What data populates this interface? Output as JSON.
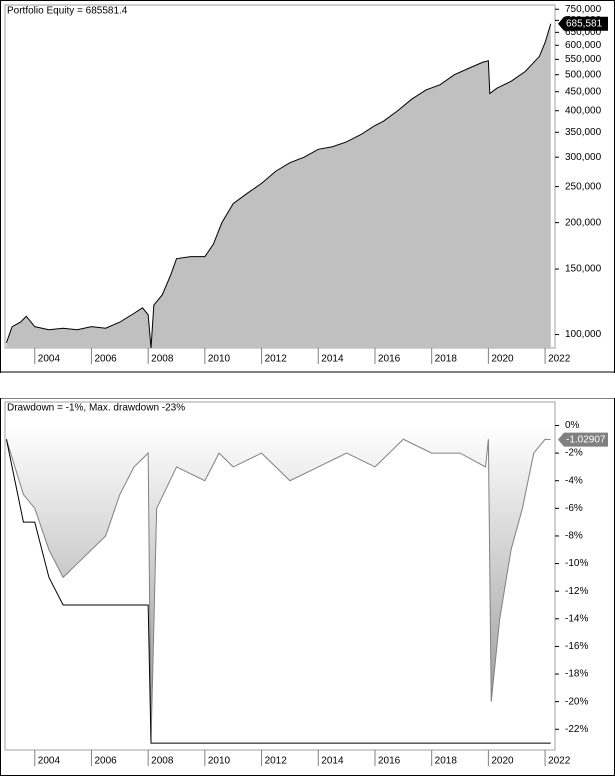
{
  "chart_data": [
    {
      "type": "area",
      "title": "Portfolio Equity = 685581.4",
      "log_scale": true,
      "x": [
        2003.0,
        2003.2,
        2003.5,
        2003.7,
        2004.0,
        2004.5,
        2005.0,
        2005.5,
        2006.0,
        2006.5,
        2007.0,
        2007.5,
        2007.8,
        2008.0,
        2008.1,
        2008.2,
        2008.5,
        2008.8,
        2009.0,
        2009.5,
        2010.0,
        2010.3,
        2010.6,
        2011.0,
        2011.5,
        2012.0,
        2012.5,
        2013.0,
        2013.5,
        2014.0,
        2014.5,
        2015.0,
        2015.5,
        2016.0,
        2016.3,
        2016.8,
        2017.3,
        2017.8,
        2018.3,
        2018.8,
        2019.3,
        2019.8,
        2020.0,
        2020.05,
        2020.3,
        2020.8,
        2021.3,
        2021.8,
        2022.0,
        2022.2
      ],
      "series": [
        {
          "color": "#000000",
          "fill": "#c0c0c0",
          "values": [
            95000,
            105000,
            108000,
            112000,
            105000,
            103000,
            104000,
            103000,
            105000,
            104000,
            108000,
            114000,
            118000,
            113000,
            92000,
            120000,
            128000,
            145000,
            160000,
            162000,
            162000,
            175000,
            200000,
            225000,
            240000,
            255000,
            275000,
            290000,
            300000,
            315000,
            320000,
            330000,
            345000,
            365000,
            375000,
            400000,
            430000,
            455000,
            470000,
            500000,
            520000,
            540000,
            545000,
            445000,
            460000,
            480000,
            510000,
            560000,
            610000,
            685581
          ]
        }
      ],
      "xlim": [
        2002.95,
        2022.35
      ],
      "xticks": [
        2004,
        2006,
        2008,
        2010,
        2012,
        2014,
        2016,
        2018,
        2020,
        2022
      ],
      "ylim": [
        92000,
        770000
      ],
      "yticks": [
        {
          "value": 100000,
          "label": "100,000"
        },
        {
          "value": 150000,
          "label": "150,000"
        },
        {
          "value": 200000,
          "label": "200,000"
        },
        {
          "value": 250000,
          "label": "250,000"
        },
        {
          "value": 300000,
          "label": "300,000"
        },
        {
          "value": 350000,
          "label": "350,000"
        },
        {
          "value": 400000,
          "label": "400,000"
        },
        {
          "value": 450000,
          "label": "450,000"
        },
        {
          "value": 500000,
          "label": "500,000"
        },
        {
          "value": 550000,
          "label": "550,000"
        },
        {
          "value": 600000,
          "label": "600,000"
        },
        {
          "value": 650000,
          "label": "650,000"
        },
        {
          "value": 700000,
          "label": "700,000"
        },
        {
          "value": 750000,
          "label": "750,000"
        }
      ],
      "value_tag": {
        "value": 685581,
        "label": "685,581"
      },
      "tag_color": "#000000"
    },
    {
      "type": "area",
      "title": "Drawdown = -1%, Max. drawdown -23%",
      "x": [
        2003.0,
        2003.3,
        2003.6,
        2004.0,
        2004.5,
        2005.0,
        2005.5,
        2006.0,
        2006.5,
        2007.0,
        2007.5,
        2008.0,
        2008.1,
        2008.3,
        2009.0,
        2010.0,
        2010.5,
        2011.0,
        2012.0,
        2013.0,
        2014.0,
        2015.0,
        2016.0,
        2017.0,
        2018.0,
        2019.0,
        2019.9,
        2020.0,
        2020.1,
        2020.4,
        2020.8,
        2021.2,
        2021.6,
        2022.0,
        2022.2
      ],
      "series": [
        {
          "color": "#808080",
          "fill": "#909090",
          "values": [
            -1,
            -3,
            -5,
            -6,
            -9,
            -11,
            -10,
            -9,
            -8,
            -5,
            -3,
            -2,
            -23,
            -6,
            -3,
            -4,
            -2,
            -3,
            -2,
            -4,
            -3,
            -2,
            -3,
            -1,
            -2,
            -2,
            -3,
            -1,
            -20,
            -14,
            -9,
            -6,
            -2,
            -1,
            -1.02907
          ]
        },
        {
          "color": "#000000",
          "values": [
            -1,
            -4,
            -7,
            -7,
            -11,
            -13,
            -13,
            -13,
            -13,
            -13,
            -13,
            -13,
            -23,
            -23,
            -23,
            -23,
            -23,
            -23,
            -23,
            -23,
            -23,
            -23,
            -23,
            -23,
            -23,
            -23,
            -23,
            -23,
            -23,
            -23,
            -23,
            -23,
            -23,
            -23,
            -23
          ]
        }
      ],
      "xlim": [
        2002.95,
        2022.35
      ],
      "xticks": [
        2004,
        2006,
        2008,
        2010,
        2012,
        2014,
        2016,
        2018,
        2020,
        2022
      ],
      "ylim": [
        -23.5,
        1.7
      ],
      "yticks": [
        {
          "value": 0,
          "label": "0%"
        },
        {
          "value": -2,
          "label": "-2%"
        },
        {
          "value": -4,
          "label": "-4%"
        },
        {
          "value": -6,
          "label": "-6%"
        },
        {
          "value": -8,
          "label": "-8%"
        },
        {
          "value": -10,
          "label": "-10%"
        },
        {
          "value": -12,
          "label": "-12%"
        },
        {
          "value": -14,
          "label": "-14%"
        },
        {
          "value": -16,
          "label": "-16%"
        },
        {
          "value": -18,
          "label": "-18%"
        },
        {
          "value": -20,
          "label": "-20%"
        },
        {
          "value": -22,
          "label": "-22%"
        }
      ],
      "value_tag": -1.02907,
      "tag_color": "#808080"
    }
  ]
}
